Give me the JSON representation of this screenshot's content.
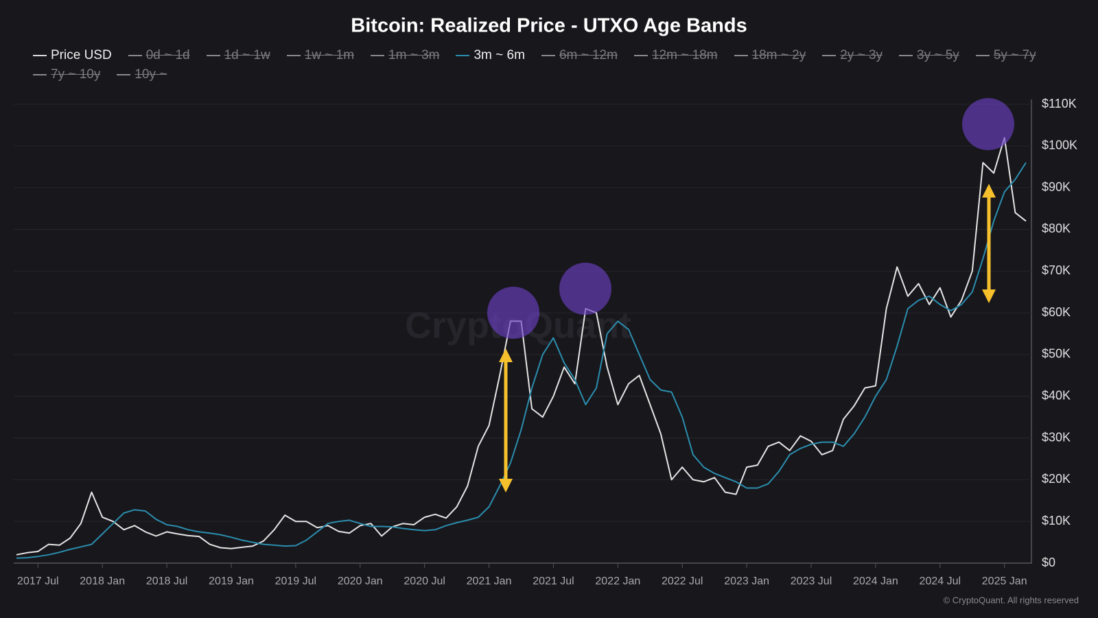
{
  "chart_data": {
    "type": "line",
    "title": "Bitcoin: Realized Price - UTXO Age Bands",
    "watermark": "CryptoQuant",
    "credit": "© CryptoQuant. All rights reserved",
    "x": [
      "2017-05",
      "2017-06",
      "2017-07",
      "2017-08",
      "2017-09",
      "2017-10",
      "2017-11",
      "2017-12",
      "2018-01",
      "2018-02",
      "2018-03",
      "2018-04",
      "2018-05",
      "2018-06",
      "2018-07",
      "2018-08",
      "2018-09",
      "2018-10",
      "2018-11",
      "2018-12",
      "2019-01",
      "2019-02",
      "2019-03",
      "2019-04",
      "2019-05",
      "2019-06",
      "2019-07",
      "2019-08",
      "2019-09",
      "2019-10",
      "2019-11",
      "2019-12",
      "2020-01",
      "2020-02",
      "2020-03",
      "2020-04",
      "2020-05",
      "2020-06",
      "2020-07",
      "2020-08",
      "2020-09",
      "2020-10",
      "2020-11",
      "2020-12",
      "2021-01",
      "2021-02",
      "2021-03",
      "2021-04",
      "2021-05",
      "2021-06",
      "2021-07",
      "2021-08",
      "2021-09",
      "2021-10",
      "2021-11",
      "2021-12",
      "2022-01",
      "2022-02",
      "2022-03",
      "2022-04",
      "2022-05",
      "2022-06",
      "2022-07",
      "2022-08",
      "2022-09",
      "2022-10",
      "2022-11",
      "2022-12",
      "2023-01",
      "2023-02",
      "2023-03",
      "2023-04",
      "2023-05",
      "2023-06",
      "2023-07",
      "2023-08",
      "2023-09",
      "2023-10",
      "2023-11",
      "2023-12",
      "2024-01",
      "2024-02",
      "2024-03",
      "2024-04",
      "2024-05",
      "2024-06",
      "2024-07",
      "2024-08",
      "2024-09",
      "2024-10",
      "2024-11",
      "2024-12",
      "2025-01",
      "2025-02",
      "2025-03"
    ],
    "xlim": [
      "2017-05",
      "2025-03"
    ],
    "xticks": [
      {
        "value": "2017-07",
        "label": "2017 Jul"
      },
      {
        "value": "2018-01",
        "label": "2018 Jan"
      },
      {
        "value": "2018-07",
        "label": "2018 Jul"
      },
      {
        "value": "2019-01",
        "label": "2019 Jan"
      },
      {
        "value": "2019-07",
        "label": "2019 Jul"
      },
      {
        "value": "2020-01",
        "label": "2020 Jan"
      },
      {
        "value": "2020-07",
        "label": "2020 Jul"
      },
      {
        "value": "2021-01",
        "label": "2021 Jan"
      },
      {
        "value": "2021-07",
        "label": "2021 Jul"
      },
      {
        "value": "2022-01",
        "label": "2022 Jan"
      },
      {
        "value": "2022-07",
        "label": "2022 Jul"
      },
      {
        "value": "2023-01",
        "label": "2023 Jan"
      },
      {
        "value": "2023-07",
        "label": "2023 Jul"
      },
      {
        "value": "2024-01",
        "label": "2024 Jan"
      },
      {
        "value": "2024-07",
        "label": "2024 Jul"
      },
      {
        "value": "2025-01",
        "label": "2025 Jan"
      }
    ],
    "ylim": [
      0,
      110000
    ],
    "yticks": [
      {
        "value": 0,
        "label": "$0"
      },
      {
        "value": 10000,
        "label": "$10K"
      },
      {
        "value": 20000,
        "label": "$20K"
      },
      {
        "value": 30000,
        "label": "$30K"
      },
      {
        "value": 40000,
        "label": "$40K"
      },
      {
        "value": 50000,
        "label": "$50K"
      },
      {
        "value": 60000,
        "label": "$60K"
      },
      {
        "value": 70000,
        "label": "$70K"
      },
      {
        "value": 80000,
        "label": "$80K"
      },
      {
        "value": 90000,
        "label": "$90K"
      },
      {
        "value": 100000,
        "label": "$100K"
      },
      {
        "value": 110000,
        "label": "$110K"
      }
    ],
    "grid": true,
    "series": [
      {
        "name": "Price USD",
        "color": "#e6e6e6",
        "visible": true,
        "values": [
          2000,
          2500,
          2800,
          4500,
          4300,
          6000,
          9500,
          17000,
          11000,
          10000,
          8000,
          9000,
          7500,
          6500,
          7500,
          7000,
          6600,
          6400,
          4500,
          3700,
          3500,
          3800,
          4100,
          5300,
          8000,
          11500,
          10000,
          10000,
          8500,
          9000,
          7600,
          7200,
          9000,
          9500,
          6500,
          8700,
          9500,
          9200,
          11000,
          11700,
          10800,
          13500,
          18500,
          28000,
          33000,
          45000,
          58000,
          58000,
          37000,
          35000,
          40000,
          47000,
          43000,
          61000,
          60000,
          47000,
          38000,
          43000,
          45000,
          38000,
          31000,
          20000,
          23000,
          20000,
          19500,
          20500,
          17000,
          16500,
          23000,
          23500,
          28000,
          29000,
          27000,
          30500,
          29200,
          26000,
          27000,
          34500,
          37700,
          42000,
          42500,
          61000,
          71000,
          64000,
          67000,
          62000,
          66000,
          59000,
          63000,
          70000,
          96000,
          93500,
          102000,
          84000,
          82000
        ]
      },
      {
        "name": "0d ~ 1d",
        "color": "#8a8a8e",
        "visible": false
      },
      {
        "name": "1d ~ 1w",
        "color": "#8a8a8e",
        "visible": false
      },
      {
        "name": "1w ~ 1m",
        "color": "#8a8a8e",
        "visible": false
      },
      {
        "name": "1m ~ 3m",
        "color": "#8a8a8e",
        "visible": false
      },
      {
        "name": "3m ~ 6m",
        "color": "#2b8eae",
        "visible": true,
        "values": [
          1200,
          1300,
          1600,
          2000,
          2600,
          3300,
          3900,
          4500,
          7000,
          9500,
          12000,
          12800,
          12500,
          10500,
          9200,
          8800,
          8000,
          7500,
          7200,
          6800,
          6200,
          5500,
          5000,
          4500,
          4300,
          4100,
          4200,
          5500,
          7500,
          9500,
          10000,
          10300,
          9500,
          8800,
          8800,
          8700,
          8300,
          8000,
          7800,
          8000,
          9000,
          9700,
          10300,
          11000,
          13500,
          18500,
          24000,
          32000,
          42000,
          50000,
          54000,
          48000,
          44000,
          38000,
          42000,
          55000,
          58000,
          56000,
          50000,
          44000,
          41500,
          41000,
          35000,
          26000,
          23000,
          21500,
          20500,
          19500,
          18000,
          18000,
          19000,
          22000,
          26000,
          27500,
          28500,
          29000,
          29000,
          28000,
          31000,
          35000,
          40000,
          44000,
          52000,
          61000,
          63000,
          64000,
          62000,
          60500,
          62000,
          65000,
          73000,
          82000,
          89000,
          92000,
          96000
        ]
      },
      {
        "name": "6m ~ 12m",
        "color": "#8a8a8e",
        "visible": false
      },
      {
        "name": "12m ~ 18m",
        "color": "#8a8a8e",
        "visible": false
      },
      {
        "name": "18m ~ 2y",
        "color": "#8a8a8e",
        "visible": false
      },
      {
        "name": "2y ~ 3y",
        "color": "#8a8a8e",
        "visible": false
      },
      {
        "name": "3y ~ 5y",
        "color": "#8a8a8e",
        "visible": false
      },
      {
        "name": "5y ~ 7y",
        "color": "#8a8a8e",
        "visible": false
      },
      {
        "name": "7y ~ 10y",
        "color": "#8a8a8e",
        "visible": false
      },
      {
        "name": "10y ~",
        "color": "#8a8a8e",
        "visible": false
      }
    ]
  }
}
